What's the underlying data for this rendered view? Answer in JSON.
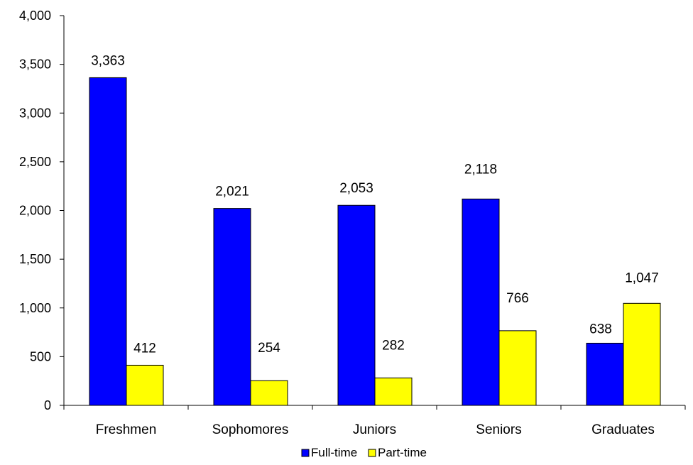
{
  "chart_data": {
    "type": "bar",
    "categories": [
      "Freshmen",
      "Sophomores",
      "Juniors",
      "Seniors",
      "Graduates"
    ],
    "series": [
      {
        "name": "Full-time",
        "values": [
          3363,
          2021,
          2053,
          2118,
          638
        ],
        "labels": [
          "3,363",
          "2,021",
          "2,053",
          "2,118",
          "638"
        ],
        "color": "#0000ff"
      },
      {
        "name": "Part-time",
        "values": [
          412,
          254,
          282,
          766,
          1047
        ],
        "labels": [
          "412",
          "254",
          "282",
          "766",
          "1,047"
        ],
        "color": "#ffff00"
      }
    ],
    "y_ticks": [
      "0",
      "500",
      "1,000",
      "1,500",
      "2,000",
      "2,500",
      "3,000",
      "3,500",
      "4,000"
    ],
    "ylim": [
      0,
      4000
    ],
    "ytick_step": 500,
    "grid": false,
    "legend_position": "bottom",
    "title": "",
    "xlabel": "",
    "ylabel": ""
  }
}
